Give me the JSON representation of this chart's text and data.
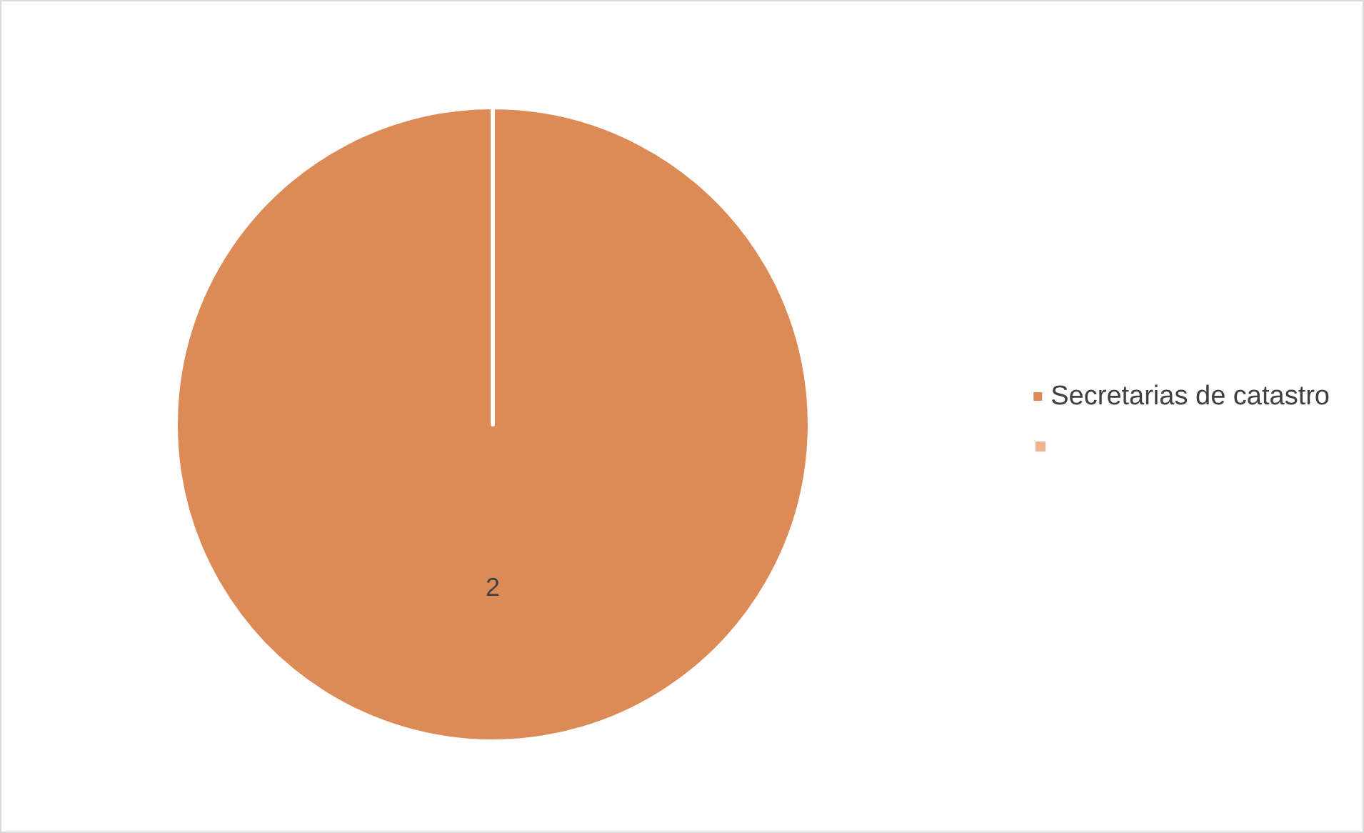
{
  "chart_data": {
    "type": "pie",
    "categories": [
      "Secretarias de catastro",
      null
    ],
    "values": [
      2,
      0
    ],
    "colors": [
      "#dc8b57",
      "#f2b290"
    ],
    "data_labels": true,
    "legend": "right"
  }
}
